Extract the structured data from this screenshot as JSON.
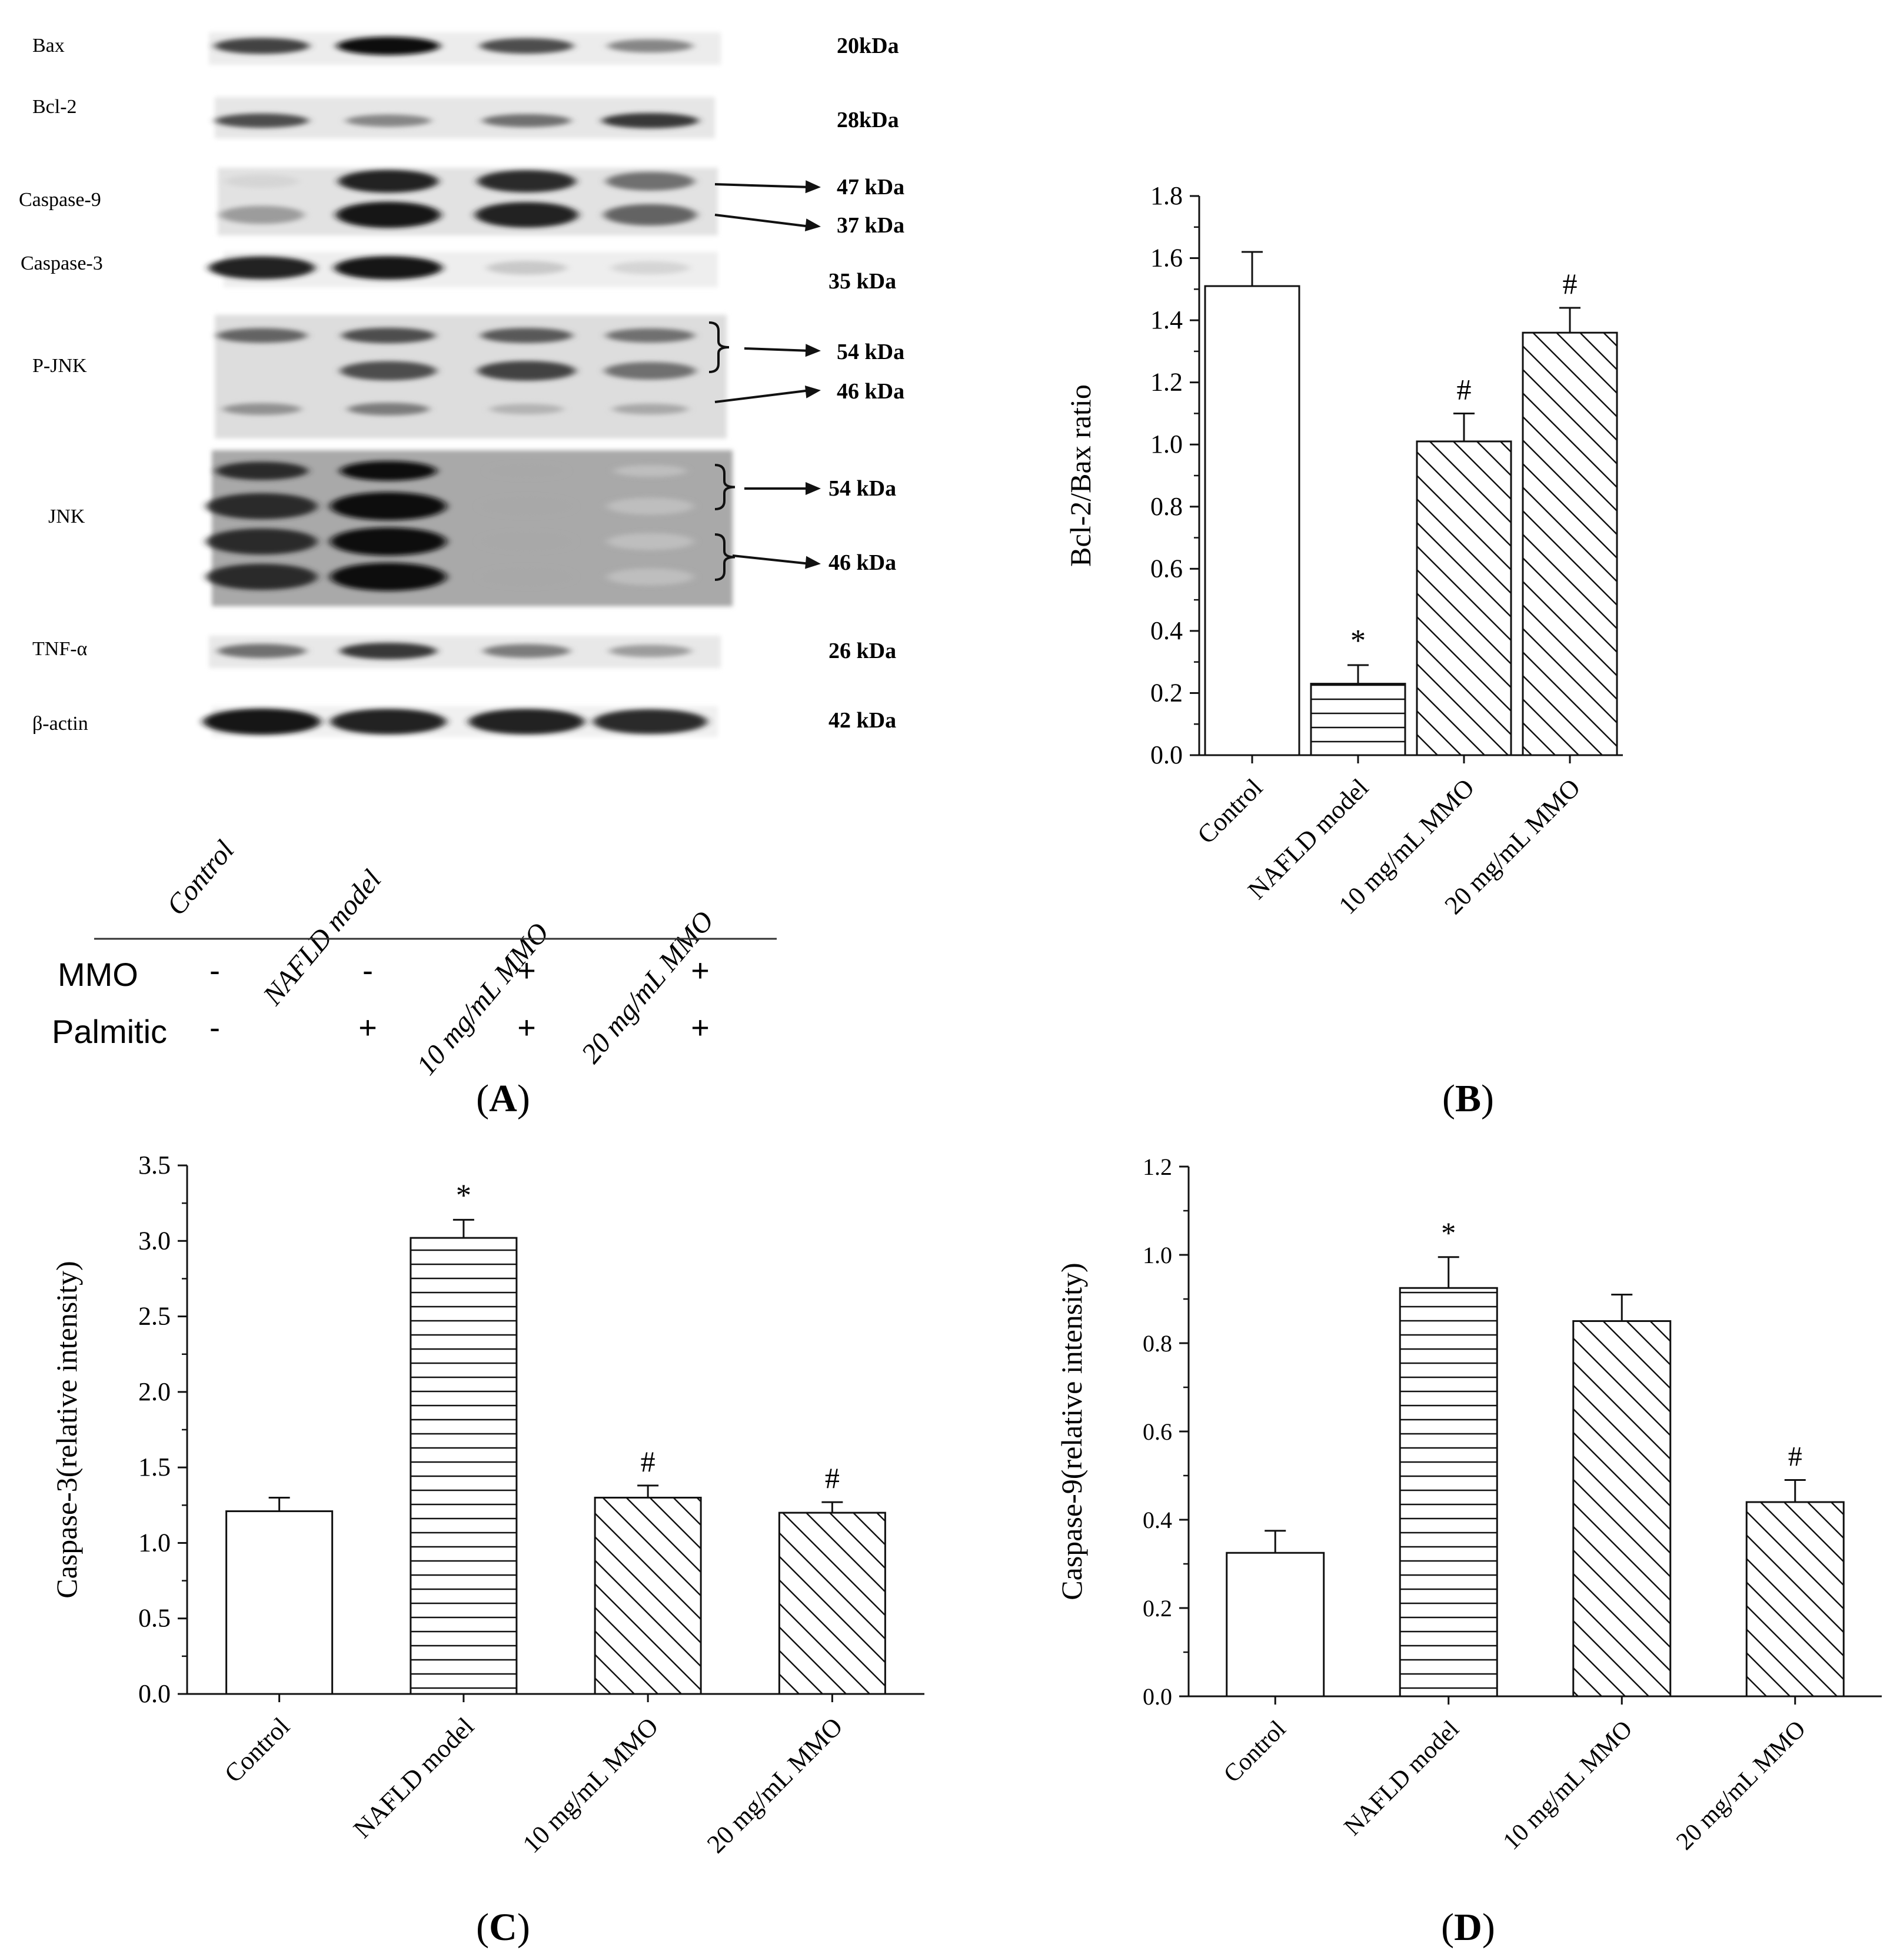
{
  "panel_labels": [
    "A",
    "B",
    "C",
    "D"
  ],
  "blot": {
    "rows": [
      {
        "label": "Bax",
        "kda": [
          "20kDa"
        ]
      },
      {
        "label": "Bcl-2",
        "kda": [
          "28kDa"
        ]
      },
      {
        "label": "Caspase-9",
        "kda": [
          "47 kDa",
          "37  kDa"
        ]
      },
      {
        "label": "Caspase-3",
        "kda": [
          "35 kDa"
        ]
      },
      {
        "label": "P-JNK",
        "kda": [
          "54 kDa",
          "46 kDa"
        ]
      },
      {
        "label": "JNK",
        "kda": [
          "54 kDa",
          "46 kDa"
        ]
      },
      {
        "label": "TNF-α",
        "kda": [
          "26 kDa"
        ]
      },
      {
        "label": "β-actin",
        "kda": [
          "42 kDa"
        ]
      }
    ],
    "lanes": [
      "Control",
      "NAFLD model",
      "10  mg/mL MMO",
      "20 mg/mL MMO"
    ],
    "treatments": [
      {
        "label": "MMO",
        "marks": [
          "-",
          "-",
          "+",
          "+"
        ]
      },
      {
        "label": "Palmitic",
        "marks": [
          "-",
          "+",
          "+",
          "+"
        ]
      }
    ],
    "band_intensity": {
      "Bax": [
        0.75,
        1.0,
        0.7,
        0.45
      ],
      "Bcl-2": [
        0.7,
        0.45,
        0.55,
        0.8
      ],
      "Caspase-9 47": [
        0.1,
        0.9,
        0.85,
        0.55
      ],
      "Caspase-9 37": [
        0.35,
        0.95,
        0.9,
        0.6
      ],
      "Caspase-3": [
        0.9,
        0.95,
        0.15,
        0.1
      ],
      "P-JNK 54": [
        0.6,
        0.7,
        0.65,
        0.55
      ],
      "P-JNK 46": [
        0.0,
        0.7,
        0.75,
        0.55
      ],
      "P-JNK low": [
        0.4,
        0.5,
        0.25,
        0.3
      ],
      "JNK": [
        0.85,
        1.0,
        0.3,
        0.2
      ],
      "TNF-α": [
        0.55,
        0.8,
        0.5,
        0.35
      ],
      "β-actin": [
        0.95,
        0.9,
        0.9,
        0.85
      ]
    }
  },
  "chart_data": [
    {
      "panel": "B",
      "type": "bar",
      "categories": [
        "Control",
        "NAFLD model",
        "10  mg/mL MMO",
        "20 mg/mL MMO"
      ],
      "values": [
        1.51,
        0.23,
        1.01,
        1.36
      ],
      "errors": [
        0.11,
        0.06,
        0.09,
        0.08
      ],
      "annotations": [
        "",
        "*",
        "#",
        "#"
      ],
      "patterns": [
        "none",
        "horizontal",
        "diagonal",
        "diagonal"
      ],
      "ylabel": "Bcl-2/Bax ratio",
      "ylim": [
        0,
        1.8
      ],
      "yticks": [
        "0.0",
        "0.2",
        "0.4",
        "0.6",
        "0.8",
        "1.0",
        "1.2",
        "1.4",
        "1.6",
        "1.8"
      ]
    },
    {
      "panel": "C",
      "type": "bar",
      "categories": [
        "Control",
        "NAFLD model",
        "10  mg/mL MMO",
        "20 mg/mL MMO"
      ],
      "values": [
        1.21,
        3.02,
        1.3,
        1.2
      ],
      "errors": [
        0.09,
        0.12,
        0.08,
        0.07
      ],
      "annotations": [
        "",
        "*",
        "#",
        "#"
      ],
      "patterns": [
        "none",
        "horizontal",
        "diagonal",
        "diagonal"
      ],
      "ylabel": "Caspase-3(relative intensity)",
      "ylim": [
        0,
        3.5
      ],
      "yticks": [
        "0.0",
        "0.5",
        "1.0",
        "1.5",
        "2.0",
        "2.5",
        "3.0",
        "3.5"
      ]
    },
    {
      "panel": "D",
      "type": "bar",
      "categories": [
        "Control",
        "NAFLD model",
        "10  mg/mL MMO",
        "20 mg/mL MMO"
      ],
      "values": [
        0.325,
        0.925,
        0.85,
        0.44
      ],
      "errors": [
        0.05,
        0.07,
        0.06,
        0.05
      ],
      "annotations": [
        "",
        "*",
        "",
        "#"
      ],
      "patterns": [
        "none",
        "horizontal",
        "diagonal",
        "diagonal"
      ],
      "ylabel": "Caspase-9(relative intensity)",
      "ylim": [
        0,
        1.2
      ],
      "yticks": [
        "0.0",
        "0.2",
        "0.4",
        "0.6",
        "0.8",
        "1.0",
        "1.2"
      ]
    }
  ]
}
